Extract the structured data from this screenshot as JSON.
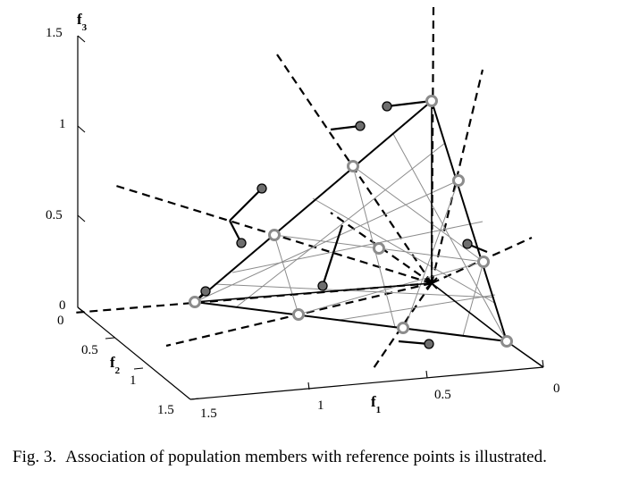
{
  "figure": {
    "axes": {
      "f3": {
        "label_main": "f",
        "label_sub": "3",
        "ticks": [
          "0",
          "0.5",
          "1",
          "1.5"
        ]
      },
      "f2": {
        "label_main": "f",
        "label_sub": "2",
        "ticks": [
          "0",
          "0.5",
          "1",
          "1.5"
        ]
      },
      "f1": {
        "label_main": "f",
        "label_sub": "1",
        "ticks": [
          "0",
          "0.5",
          "1",
          "1.5"
        ]
      }
    }
  },
  "caption": {
    "number": "Fig. 3.",
    "text": "Association of population members with reference points is illustrated."
  }
}
